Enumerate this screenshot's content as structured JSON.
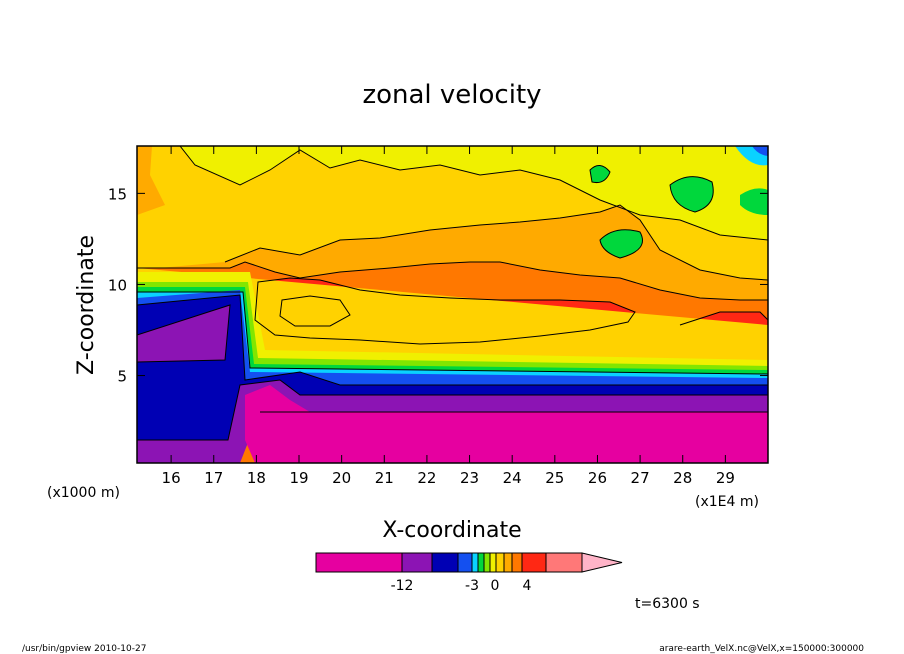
{
  "chart_data": {
    "type": "heatmap",
    "title": "zonal velocity",
    "xlabel": "X-coordinate",
    "ylabel": "Z-coordinate",
    "x_unit_left": "(x1000 m)",
    "x_unit_right": "(x1E4 m)",
    "xlim": [
      15.2,
      30.0
    ],
    "ylim": [
      0.2,
      17.6
    ],
    "x_ticks": [
      "16",
      "17",
      "18",
      "19",
      "20",
      "21",
      "22",
      "23",
      "24",
      "25",
      "26",
      "27",
      "28",
      "29"
    ],
    "y_ticks": [
      "5",
      "10",
      "15"
    ],
    "colorbar": {
      "colors": [
        "#e600a0",
        "#8c14b4",
        "#0000b4",
        "#1450f0",
        "#0ad2ff",
        "#00d73c",
        "#82e600",
        "#f0f000",
        "#ffd200",
        "#ffaa00",
        "#ff7800",
        "#ff2814",
        "#ff7878",
        "#ffb4c8"
      ],
      "labels": [
        "-12",
        "-3",
        "0",
        "4"
      ]
    },
    "time_label": "t=6300 s"
  },
  "footer": {
    "left": "/usr/bin/gpview   2010-10-27",
    "right": "arare-earth_VelX.nc@VelX,x=150000:300000"
  }
}
